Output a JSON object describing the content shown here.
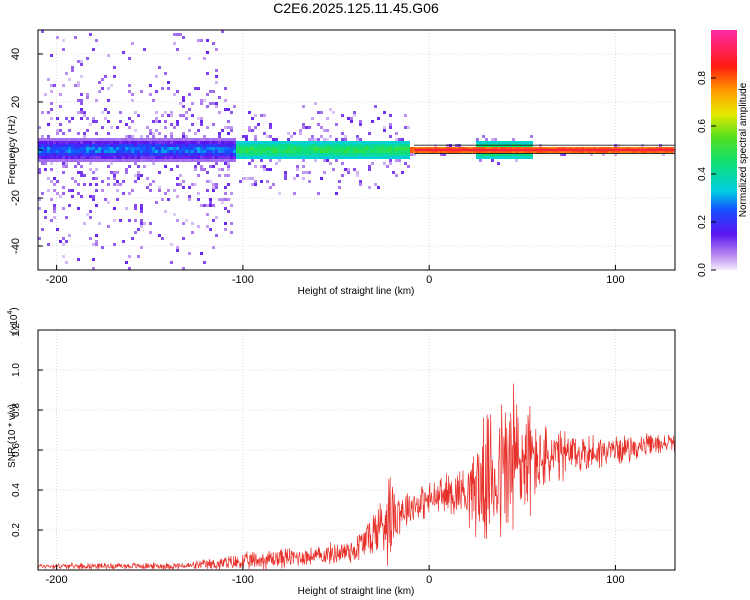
{
  "title": "C2E6.2025.125.11.45.G06",
  "chart_data": [
    {
      "type": "heatmap",
      "xlabel": "Height of straight line (km)",
      "ylabel": "Frequency (Hz)",
      "xlim": [
        -210,
        132
      ],
      "ylim": [
        -50,
        50
      ],
      "x_ticks": [
        "-200",
        "-100",
        "0",
        "100"
      ],
      "y_ticks": [
        "40",
        "20",
        "0",
        "-20",
        "-40"
      ],
      "colorbar": {
        "label": "Normalized spectral amplitude",
        "range": [
          0,
          1
        ],
        "ticks": [
          "0.8",
          "0.6",
          "0.4",
          "0.2",
          "0.0"
        ]
      },
      "grid": true,
      "regions": [
        {
          "x_range": [
            -210,
            -103
          ],
          "freq_halfwidth": 5,
          "scatter_halfwidth": 50,
          "amplitude": [
            0.05,
            0.35
          ]
        },
        {
          "x_range": [
            -103,
            -10
          ],
          "freq_halfwidth": 4,
          "scatter_halfwidth": 20,
          "amplitude": [
            0.3,
            0.55
          ]
        },
        {
          "x_range": [
            -10,
            132
          ],
          "freq_halfwidth": 1,
          "scatter_halfwidth": 3,
          "amplitude": [
            0.7,
            1.0
          ]
        },
        {
          "x_range": [
            25,
            55
          ],
          "freq_halfwidth": 4,
          "scatter_halfwidth": 6,
          "amplitude": [
            0.3,
            0.6
          ]
        }
      ],
      "center_line_hz": 0,
      "bound_lines_hz": [
        2,
        -1.5
      ]
    },
    {
      "type": "line",
      "xlabel": "Height of straight line (km)",
      "ylabel": "SNR (10 * v/v)",
      "y_scale_label": "(x10",
      "y_scale_exp": "4",
      "xlim": [
        -210,
        132
      ],
      "ylim": [
        0,
        1.2
      ],
      "x_ticks": [
        "-200",
        "-100",
        "0",
        "100"
      ],
      "y_ticks": [
        "1.2",
        "1.0",
        "0.8",
        "0.6",
        "0.4",
        "0.2"
      ],
      "grid": true,
      "color": "#e8302a",
      "series": [
        {
          "envelope_x": [
            -210,
            -130,
            -100,
            -80,
            -60,
            -40,
            -28,
            -22,
            -15,
            -10,
            0,
            10,
            20,
            23,
            30,
            40,
            45,
            50,
            60,
            80,
            100,
            132
          ],
          "baseline": [
            0.02,
            0.02,
            0.04,
            0.06,
            0.07,
            0.1,
            0.2,
            0.28,
            0.3,
            0.32,
            0.35,
            0.38,
            0.4,
            0.4,
            0.45,
            0.5,
            0.52,
            0.55,
            0.55,
            0.58,
            0.6,
            0.64
          ],
          "amplitude": [
            0.015,
            0.02,
            0.05,
            0.06,
            0.05,
            0.08,
            0.15,
            0.28,
            0.12,
            0.1,
            0.1,
            0.12,
            0.15,
            0.25,
            0.35,
            0.45,
            0.6,
            0.4,
            0.2,
            0.12,
            0.08,
            0.05
          ]
        }
      ]
    }
  ]
}
